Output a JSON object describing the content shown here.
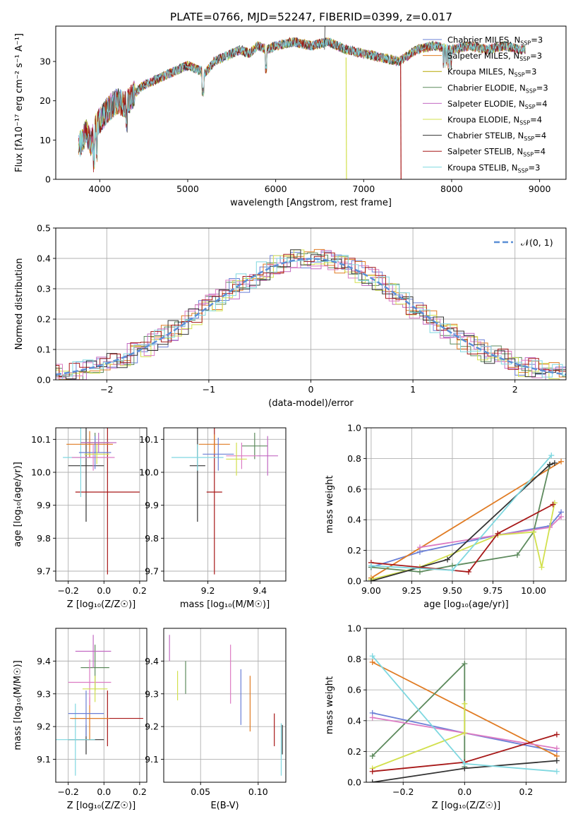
{
  "figure": {
    "title": "PLATE=0766, MJD=52247, FIBERID=0399, z=0.017"
  },
  "colors": {
    "grid": "#b0b0b0",
    "series": [
      "#6a7fd6",
      "#e07b23",
      "#5d8a5d",
      "#c26ac2",
      "#d2e04d",
      "#dc7bc3",
      "#333333",
      "#a71818",
      "#7fd8e0",
      "#b5a700"
    ]
  },
  "chart_data": [
    {
      "id": "spectrum",
      "type": "line",
      "xlabel": "wavelength [Angstrom, rest frame]",
      "ylabel": "Flux [fλ10⁻¹⁷ erg cm⁻² s⁻¹ A⁻¹]",
      "xlim": [
        3500,
        9300
      ],
      "ylim": [
        0,
        39
      ],
      "xticks": [
        4000,
        5000,
        6000,
        7000,
        8000,
        9000
      ],
      "yticks": [
        0,
        10,
        20,
        30
      ],
      "grid": false,
      "legend_position": "top-right",
      "legend": [
        {
          "label": "Chabrier MILES, N",
          "sub": "SSP",
          "tail": "=3",
          "color": "#6a7fd6"
        },
        {
          "label": "Salpeter MILES, N",
          "sub": "SSP",
          "tail": "=3",
          "color": "#e07b23"
        },
        {
          "label": "Kroupa MILES, N",
          "sub": "SSP",
          "tail": "=3",
          "color": "#b5a700"
        },
        {
          "label": "Chabrier ELODIE, N",
          "sub": "SSP",
          "tail": "=3",
          "color": "#5d8a5d"
        },
        {
          "label": "Salpeter ELODIE, N",
          "sub": "SSP",
          "tail": "=4",
          "color": "#c26ac2"
        },
        {
          "label": "Kroupa ELODIE, N",
          "sub": "SSP",
          "tail": "=4",
          "color": "#d2e04d"
        },
        {
          "label": "Chabrier STELIB, N",
          "sub": "SSP",
          "tail": "=4",
          "color": "#333333"
        },
        {
          "label": "Salpeter STELIB, N",
          "sub": "SSP",
          "tail": "=4",
          "color": "#a71818"
        },
        {
          "label": "Kroupa STELIB, N",
          "sub": "SSP",
          "tail": "=3",
          "color": "#7fd8e0"
        }
      ],
      "envelope": {
        "wavelength": [
          3760,
          3800,
          3850,
          3900,
          3950,
          4000,
          4100,
          4200,
          4300,
          4400,
          4500,
          4600,
          4700,
          4800,
          4900,
          5000,
          5100,
          5200,
          5300,
          5400,
          5500,
          5600,
          5700,
          5800,
          5900,
          6000,
          6200,
          6400,
          6600,
          6800,
          7000,
          7200,
          7400,
          7600,
          7800,
          8000,
          8200,
          8400,
          8600,
          8800
        ],
        "flux": [
          8,
          10,
          12,
          9,
          13,
          15,
          18,
          20,
          19,
          22,
          24,
          25,
          26,
          27,
          28,
          29,
          28,
          27,
          30,
          31,
          32,
          33,
          32,
          34,
          33,
          34,
          35,
          34,
          35,
          33,
          32,
          31,
          30,
          33,
          34,
          33,
          34,
          33,
          34,
          33
        ]
      }
    },
    {
      "id": "residual-histogram",
      "type": "bar",
      "xlabel": "(data-model)/error",
      "ylabel": "Normed distribution",
      "xlim": [
        -2.5,
        2.5
      ],
      "ylim": [
        0,
        0.5
      ],
      "xticks": [
        -2,
        -1,
        0,
        1,
        2
      ],
      "yticks": [
        0.0,
        0.1,
        0.2,
        0.3,
        0.4,
        0.5
      ],
      "grid": true,
      "legend_position": "top-right",
      "legend_label": "𝒩(0, 1)",
      "bin_width": 0.1,
      "note": "normal-curve overlay with N=9 jittered step histograms"
    },
    {
      "id": "age-vs-Z",
      "type": "scatter",
      "xlabel": "Z [log₁₀(Z/Z☉)]",
      "ylabel": "age  [log₁₀(age/yr)]",
      "xlim": [
        -0.27,
        0.24
      ],
      "ylim": [
        9.67,
        10.135
      ],
      "xticks": [
        -0.2,
        0.0,
        0.2
      ],
      "yticks": [
        9.7,
        9.8,
        9.9,
        10.0,
        10.1
      ],
      "grid": true,
      "points": [
        {
          "x": -0.1,
          "xerr": 0.1,
          "y": 10.02,
          "yerr": 0.17,
          "color": "#333333"
        },
        {
          "x": 0.02,
          "xerr": 0.18,
          "y": 9.94,
          "yerr": 0.25,
          "color": "#a71818"
        },
        {
          "x": -0.13,
          "xerr": 0.1,
          "y": 10.045,
          "yerr": 0.12,
          "color": "#7fd8e0"
        },
        {
          "x": -0.08,
          "xerr": 0.13,
          "y": 10.085,
          "yerr": 0.04,
          "color": "#e07b23"
        },
        {
          "x": -0.05,
          "xerr": 0.08,
          "y": 10.09,
          "yerr": 0.03,
          "color": "#5d8a5d"
        },
        {
          "x": -0.05,
          "xerr": 0.09,
          "y": 10.06,
          "yerr": 0.05,
          "color": "#6a7fd6"
        },
        {
          "x": -0.06,
          "xerr": 0.12,
          "y": 10.045,
          "yerr": 0.04,
          "color": "#dc7bc3"
        },
        {
          "x": -0.03,
          "xerr": 0.1,
          "y": 10.09,
          "yerr": 0.03,
          "color": "#c26ac2"
        },
        {
          "x": -0.04,
          "xerr": 0.07,
          "y": 10.055,
          "yerr": 0.03,
          "color": "#d2e04d"
        }
      ]
    },
    {
      "id": "age-vs-mass",
      "type": "scatter",
      "xlabel": "mass [log₁₀(M/M☉)]",
      "ylabel": "",
      "xlim": [
        9.03,
        9.5
      ],
      "ylim": [
        9.67,
        10.135
      ],
      "xticks": [
        9.2,
        9.4
      ],
      "yticks": [
        9.7,
        9.8,
        9.9,
        10.0,
        10.1
      ],
      "grid": true,
      "points": [
        {
          "x": 9.16,
          "xerr": 0.03,
          "y": 10.02,
          "yerr": 0.17,
          "color": "#333333"
        },
        {
          "x": 9.225,
          "xerr": 0.03,
          "y": 9.94,
          "yerr": 0.25,
          "color": "#a71818"
        },
        {
          "x": 9.16,
          "xerr": 0.1,
          "y": 10.045,
          "yerr": 0.04,
          "color": "#7fd8e0"
        },
        {
          "x": 9.225,
          "xerr": 0.06,
          "y": 10.085,
          "yerr": 0.03,
          "color": "#e07b23"
        },
        {
          "x": 9.38,
          "xerr": 0.05,
          "y": 10.08,
          "yerr": 0.04,
          "color": "#5d8a5d"
        },
        {
          "x": 9.24,
          "xerr": 0.06,
          "y": 10.055,
          "yerr": 0.05,
          "color": "#6a7fd6"
        },
        {
          "x": 9.33,
          "xerr": 0.06,
          "y": 10.05,
          "yerr": 0.04,
          "color": "#dc7bc3"
        },
        {
          "x": 9.43,
          "xerr": 0.04,
          "y": 10.05,
          "yerr": 0.06,
          "color": "#c26ac2"
        },
        {
          "x": 9.31,
          "xerr": 0.04,
          "y": 10.04,
          "yerr": 0.05,
          "color": "#d2e04d"
        }
      ]
    },
    {
      "id": "mass-weight-vs-age",
      "type": "line",
      "xlabel": "age  [log₁₀(age/yr)]",
      "ylabel": "mass weight",
      "xlim": [
        8.97,
        10.2
      ],
      "ylim": [
        0,
        1
      ],
      "xticks": [
        9.0,
        9.25,
        9.5,
        9.75,
        10.0
      ],
      "yticks": [
        0.0,
        0.2,
        0.4,
        0.6,
        0.8,
        1.0
      ],
      "grid": true,
      "series": [
        {
          "color": "#6a7fd6",
          "x": [
            9.0,
            9.3,
            9.78,
            10.1,
            10.17
          ],
          "y": [
            0.09,
            0.19,
            0.3,
            0.36,
            0.45
          ]
        },
        {
          "color": "#e07b23",
          "x": [
            9.0,
            10.17
          ],
          "y": [
            0.02,
            0.78
          ]
        },
        {
          "color": "#5d8a5d",
          "x": [
            9.0,
            9.3,
            9.5,
            9.9,
            10.0,
            10.1
          ],
          "y": [
            0.09,
            0.06,
            0.1,
            0.17,
            0.32,
            0.76
          ]
        },
        {
          "color": "#dc7bc3",
          "x": [
            9.3,
            9.78,
            10.1,
            10.17
          ],
          "y": [
            0.22,
            0.3,
            0.35,
            0.42
          ]
        },
        {
          "color": "#d2e04d",
          "x": [
            9.0,
            9.3,
            9.78,
            10.0,
            10.05,
            10.13
          ],
          "y": [
            0.01,
            0.09,
            0.3,
            0.32,
            0.09,
            0.51
          ]
        },
        {
          "color": "#333333",
          "x": [
            9.0,
            9.47,
            10.1,
            10.13
          ],
          "y": [
            0.0,
            0.14,
            0.76,
            0.77
          ]
        },
        {
          "color": "#a71818",
          "x": [
            9.0,
            9.6,
            9.78,
            10.12
          ],
          "y": [
            0.12,
            0.06,
            0.31,
            0.5
          ]
        },
        {
          "color": "#7fd8e0",
          "x": [
            9.0,
            9.5,
            10.11
          ],
          "y": [
            0.1,
            0.07,
            0.82
          ]
        }
      ]
    },
    {
      "id": "mass-vs-Z",
      "type": "scatter",
      "xlabel": "Z [log₁₀(Z/Z☉)]",
      "ylabel": "mass [log₁₀(M/M☉)]",
      "xlim": [
        -0.27,
        0.24
      ],
      "ylim": [
        9.03,
        9.5
      ],
      "xticks": [
        -0.2,
        0.0,
        0.2
      ],
      "yticks": [
        9.1,
        9.2,
        9.3,
        9.4
      ],
      "grid": true,
      "points": [
        {
          "x": -0.1,
          "xerr": 0.1,
          "y": 9.16,
          "yerr": 0.045,
          "color": "#333333"
        },
        {
          "x": 0.02,
          "xerr": 0.2,
          "y": 9.225,
          "yerr": 0.085,
          "color": "#a71818"
        },
        {
          "x": -0.16,
          "xerr": 0.11,
          "y": 9.16,
          "yerr": 0.11,
          "color": "#7fd8e0"
        },
        {
          "x": -0.08,
          "xerr": 0.11,
          "y": 9.225,
          "yerr": 0.065,
          "color": "#e07b23"
        },
        {
          "x": -0.05,
          "xerr": 0.08,
          "y": 9.38,
          "yerr": 0.07,
          "color": "#5d8a5d"
        },
        {
          "x": -0.1,
          "xerr": 0.1,
          "y": 9.24,
          "yerr": 0.07,
          "color": "#6a7fd6"
        },
        {
          "x": -0.08,
          "xerr": 0.12,
          "y": 9.335,
          "yerr": 0.07,
          "color": "#dc7bc3"
        },
        {
          "x": -0.06,
          "xerr": 0.1,
          "y": 9.43,
          "yerr": 0.05,
          "color": "#c26ac2"
        },
        {
          "x": -0.05,
          "xerr": 0.07,
          "y": 9.315,
          "yerr": 0.04,
          "color": "#d2e04d"
        }
      ]
    },
    {
      "id": "mass-vs-EBV",
      "type": "scatter",
      "xlabel": "E(B-V)",
      "ylabel": "",
      "xlim": [
        0.018,
        0.124
      ],
      "ylim": [
        9.03,
        9.5
      ],
      "xticks": [
        0.05,
        0.1
      ],
      "yticks": [
        9.1,
        9.2,
        9.3,
        9.4
      ],
      "grid": true,
      "points": [
        {
          "x": 0.121,
          "y": 9.16,
          "yerr": 0.045,
          "color": "#333333"
        },
        {
          "x": 0.114,
          "y": 9.19,
          "yerr": 0.05,
          "color": "#a71818"
        },
        {
          "x": 0.12,
          "y": 9.13,
          "yerr": 0.08,
          "color": "#7fd8e0"
        },
        {
          "x": 0.093,
          "y": 9.27,
          "yerr": 0.085,
          "color": "#e07b23"
        },
        {
          "x": 0.037,
          "y": 9.35,
          "yerr": 0.05,
          "color": "#5d8a5d"
        },
        {
          "x": 0.085,
          "y": 9.29,
          "yerr": 0.085,
          "color": "#6a7fd6"
        },
        {
          "x": 0.076,
          "y": 9.36,
          "yerr": 0.09,
          "color": "#dc7bc3"
        },
        {
          "x": 0.023,
          "y": 9.44,
          "yerr": 0.04,
          "color": "#c26ac2"
        },
        {
          "x": 0.03,
          "y": 9.325,
          "yerr": 0.045,
          "color": "#d2e04d"
        }
      ]
    },
    {
      "id": "mass-weight-vs-Z",
      "type": "line",
      "xlabel": "Z [log₁₀(Z/Z☉)]",
      "ylabel": "mass weight",
      "xlim": [
        -0.32,
        0.33
      ],
      "ylim": [
        0,
        1
      ],
      "xticks": [
        -0.2,
        0.0,
        0.2
      ],
      "yticks": [
        0.0,
        0.2,
        0.4,
        0.6,
        0.8,
        1.0
      ],
      "grid": true,
      "series": [
        {
          "color": "#6a7fd6",
          "x": [
            -0.3,
            0.0,
            0.3
          ],
          "y": [
            0.45,
            0.32,
            0.2
          ]
        },
        {
          "color": "#e07b23",
          "x": [
            -0.3,
            0.3
          ],
          "y": [
            0.78,
            0.17
          ]
        },
        {
          "color": "#5d8a5d",
          "x": [
            -0.3,
            0.0,
            0.0
          ],
          "y": [
            0.17,
            0.77,
            0.1
          ]
        },
        {
          "color": "#dc7bc3",
          "x": [
            -0.3,
            0.0,
            0.3
          ],
          "y": [
            0.42,
            0.32,
            0.22
          ]
        },
        {
          "color": "#d2e04d",
          "x": [
            -0.3,
            0.0,
            0.0
          ],
          "y": [
            0.09,
            0.32,
            0.51
          ]
        },
        {
          "color": "#333333",
          "x": [
            -0.3,
            0.0,
            0.3
          ],
          "y": [
            0.0,
            0.09,
            0.14
          ]
        },
        {
          "color": "#a71818",
          "x": [
            -0.3,
            0.0,
            0.3
          ],
          "y": [
            0.07,
            0.13,
            0.31
          ]
        },
        {
          "color": "#7fd8e0",
          "x": [
            -0.3,
            0.0,
            0.3
          ],
          "y": [
            0.82,
            0.12,
            0.07
          ]
        }
      ]
    }
  ]
}
